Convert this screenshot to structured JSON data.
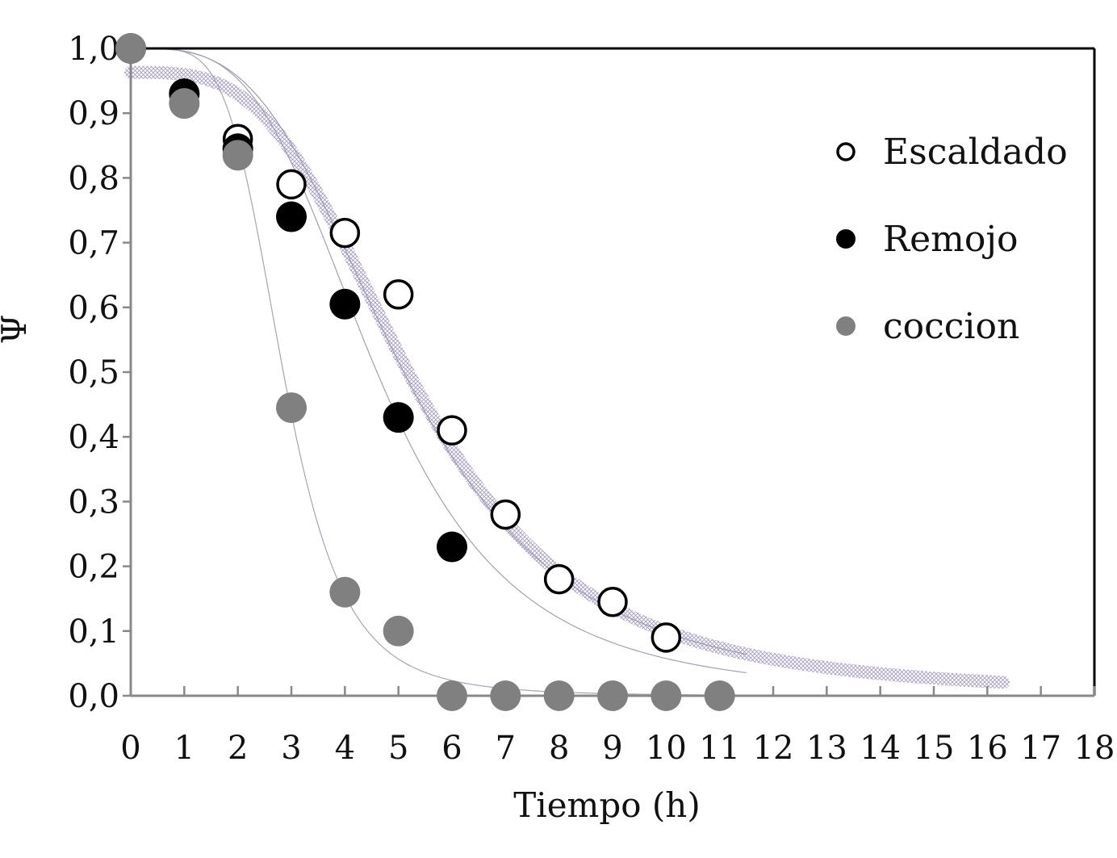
{
  "chart_data": {
    "type": "scatter",
    "title": "",
    "xlabel": "Tiempo (h)",
    "ylabel": "Ψ",
    "xlim": [
      0,
      18
    ],
    "ylim": [
      0,
      1.0
    ],
    "x_ticks": [
      0,
      1,
      2,
      3,
      4,
      5,
      6,
      7,
      8,
      9,
      10,
      11,
      12,
      13,
      14,
      15,
      16,
      17,
      18
    ],
    "y_ticks": [
      "0,0",
      "0,1",
      "0,2",
      "0,3",
      "0,4",
      "0,5",
      "0,6",
      "0,7",
      "0,8",
      "0,9",
      "1,0"
    ],
    "grid": false,
    "legend_position": "top-right",
    "series": [
      {
        "name": "Escaldado",
        "marker": "open-circle",
        "color": "#000000",
        "x": [
          0,
          1,
          2,
          3,
          4,
          5,
          6,
          7,
          8,
          9,
          10
        ],
        "y": [
          1.0,
          0.93,
          0.86,
          0.79,
          0.715,
          0.62,
          0.41,
          0.28,
          0.18,
          0.145,
          0.09
        ]
      },
      {
        "name": "Remojo",
        "marker": "filled-circle",
        "color": "#000000",
        "x": [
          0,
          1,
          2,
          3,
          4,
          5,
          6
        ],
        "y": [
          1.0,
          0.93,
          0.845,
          0.74,
          0.605,
          0.43,
          0.23
        ]
      },
      {
        "name": "coccion",
        "marker": "filled-circle",
        "color": "#808080",
        "x": [
          0,
          1,
          2,
          3,
          4,
          5,
          6,
          7,
          8,
          9,
          10,
          11
        ],
        "y": [
          1.0,
          0.915,
          0.835,
          0.445,
          0.16,
          0.1,
          0.0,
          0.0,
          0.0,
          0.0,
          0.0,
          0.0
        ]
      }
    ],
    "fit_curves": [
      {
        "for": "Escaldado",
        "style": "thick-hatched",
        "color": "#b4acc8",
        "x_max": 16.3,
        "y0": 0.963,
        "x50": 5.3,
        "n": 3.4
      },
      {
        "for": "Escaldado",
        "style": "thin",
        "color": "#9c9cb0",
        "x_max": 11.5,
        "y0": 1.0,
        "x50": 5.1,
        "n": 3.3
      },
      {
        "for": "Remojo",
        "style": "thin",
        "color": "#a0a0b4",
        "x_max": 11.5,
        "y0": 1.0,
        "x50": 4.6,
        "n": 3.6
      },
      {
        "for": "coccion",
        "style": "thin",
        "color": "#a4a4b8",
        "x_max": 11.5,
        "y0": 1.0,
        "x50": 2.85,
        "n": 5.0
      }
    ]
  }
}
